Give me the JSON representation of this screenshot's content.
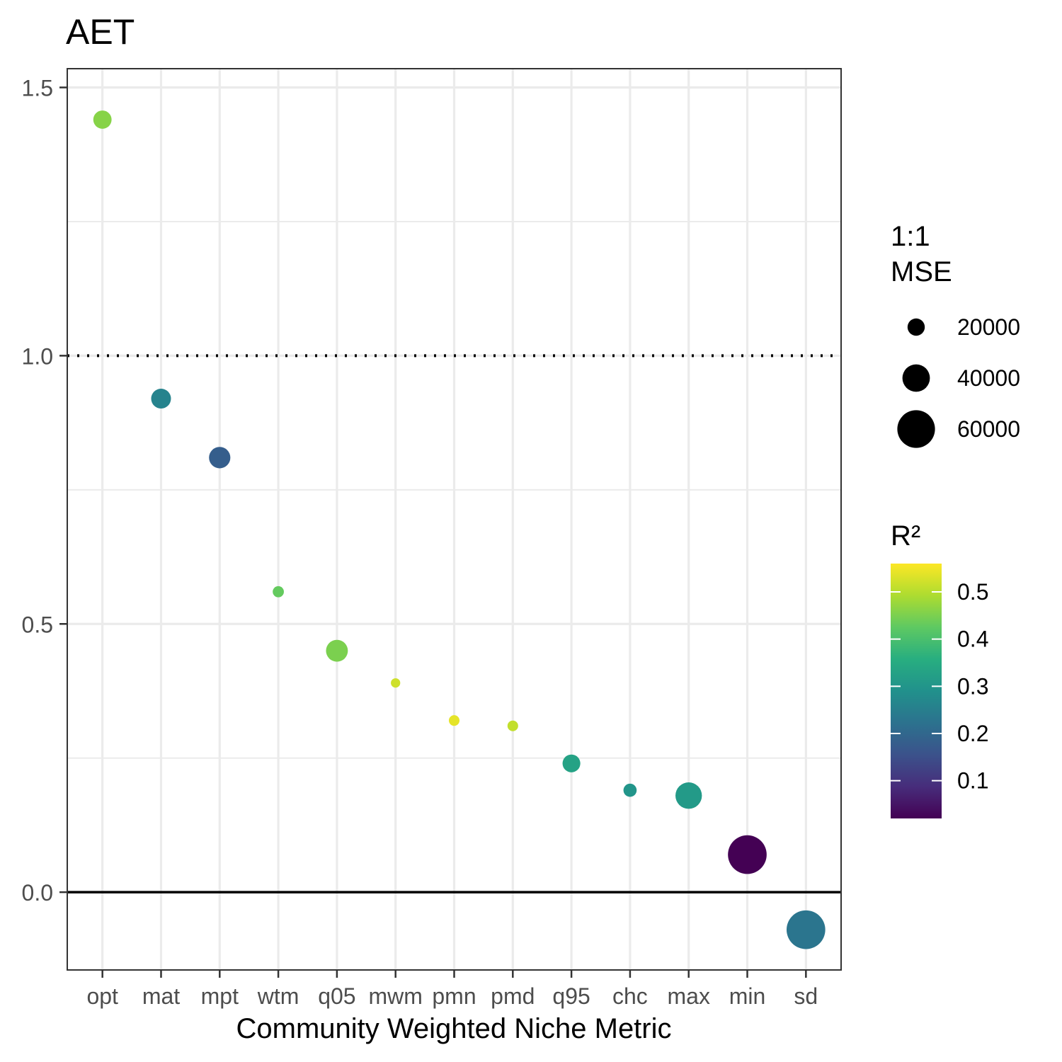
{
  "chart_data": {
    "type": "scatter",
    "title": "AET",
    "xlabel": "Community Weighted Niche Metric",
    "ylabel": "",
    "categories": [
      "opt",
      "mat",
      "mpt",
      "wtm",
      "q05",
      "mwm",
      "pmn",
      "pmd",
      "q95",
      "chc",
      "max",
      "min",
      "sd"
    ],
    "y": [
      1.44,
      0.92,
      0.81,
      0.56,
      0.45,
      0.39,
      0.32,
      0.31,
      0.24,
      0.19,
      0.18,
      0.07,
      -0.07
    ],
    "mse": [
      22000,
      25000,
      28000,
      8000,
      29000,
      4500,
      7000,
      7000,
      21000,
      12000,
      38000,
      62000,
      62000
    ],
    "r2": [
      0.46,
      0.26,
      0.18,
      0.43,
      0.45,
      0.52,
      0.54,
      0.51,
      0.33,
      0.3,
      0.31,
      0.02,
      0.23
    ],
    "ylim": [
      -0.145,
      1.535
    ],
    "y_ticks": [
      "0.0",
      "0.5",
      "1.0",
      "1.5"
    ],
    "reference_lines": [
      {
        "y": 1.0,
        "style": "dotted"
      },
      {
        "y": 0.0,
        "style": "solid"
      }
    ],
    "grid": true,
    "legend_position": "right",
    "size_legend": {
      "title_line1": "1:1",
      "title_line2": "MSE",
      "entries": [
        {
          "label": "20000",
          "value": 20000
        },
        {
          "label": "40000",
          "value": 40000
        },
        {
          "label": "60000",
          "value": 60000
        }
      ]
    },
    "color_legend": {
      "title": "R²",
      "range": [
        0.02,
        0.56
      ],
      "tick_labels": [
        "0.1",
        "0.2",
        "0.3",
        "0.4",
        "0.5"
      ],
      "tick_values": [
        0.1,
        0.2,
        0.3,
        0.4,
        0.5
      ],
      "palette": "viridis"
    }
  }
}
